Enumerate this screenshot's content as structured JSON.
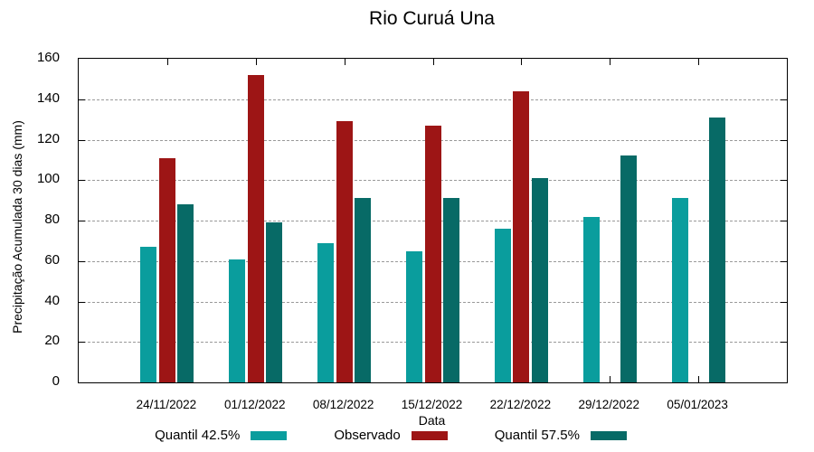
{
  "chart_data": {
    "type": "bar",
    "title": "Rio Curuá Una",
    "xlabel": "Data",
    "ylabel": "Precipitação Acumulada 30 dias (mm)",
    "categories": [
      "24/11/2022",
      "01/12/2022",
      "08/12/2022",
      "15/12/2022",
      "22/12/2022",
      "29/12/2022",
      "05/01/2023"
    ],
    "series": [
      {
        "name": "Quantil 42.5%",
        "color": "#0A9D9D",
        "values": [
          67,
          61,
          69,
          65,
          76,
          82,
          91
        ]
      },
      {
        "name": "Observado",
        "color": "#9D1515",
        "values": [
          111,
          152,
          129,
          127,
          144,
          null,
          null
        ]
      },
      {
        "name": "Quantil 57.5%",
        "color": "#076A66",
        "values": [
          88,
          79,
          91,
          91,
          101,
          112,
          131
        ]
      }
    ],
    "ylim": [
      0,
      160
    ],
    "ytick_step": 20,
    "grid": true,
    "grid_color": "#9a9a9a",
    "legend_position": "bottom",
    "axis_color": "#000000"
  }
}
